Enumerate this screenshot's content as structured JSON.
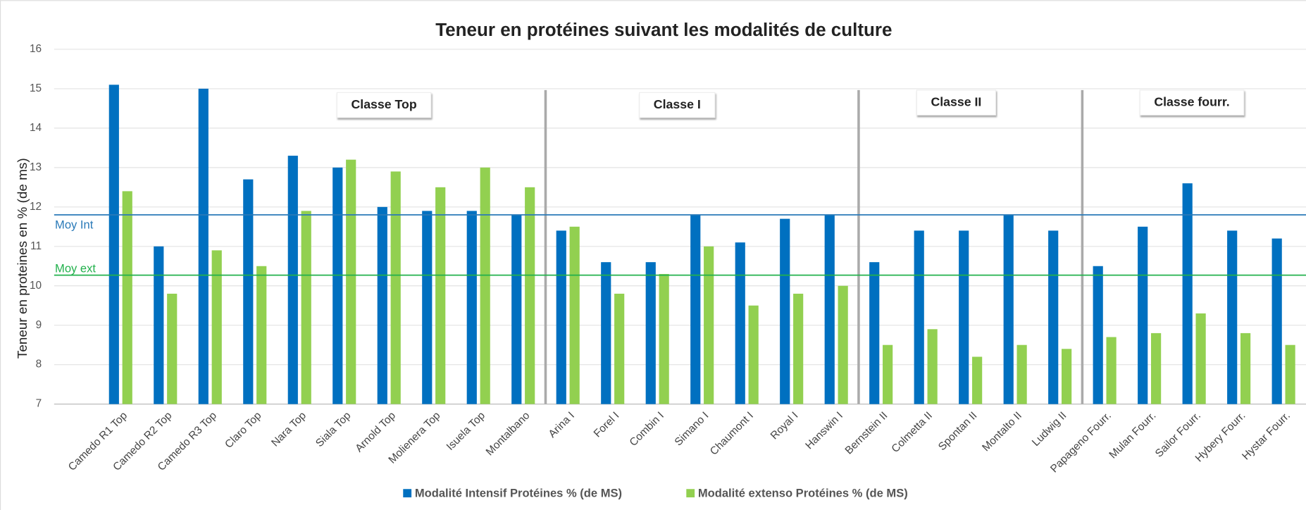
{
  "chart_data": {
    "type": "bar",
    "title": "Teneur en protéines suivant les modalités de culture",
    "y_label": "Teneur en proteines en % (de ms)",
    "categories": [
      "Camedo R1 Top",
      "Camedo R2 Top",
      "Camedo R3 Top",
      "Claro Top",
      "Nara Top",
      "Siala Top",
      "Arnold Top",
      "Molienera Top",
      "Isuela Top",
      "Montalbano",
      "Arina I",
      "Forel I",
      "Combin I",
      "Simano I",
      "Chaumont I",
      "Royal I",
      "Hanswin I",
      "Bernstein II",
      "Colmetta II",
      "Spontan II",
      "Montalto II",
      "Ludwig II",
      "Papageno Fourr.",
      "Mulan Fourr.",
      "Sailor Fourr.",
      "Hybery Fourr.",
      "Hystar Fourr."
    ],
    "series": [
      {
        "name": "Modalité Intensif  Protéines % (de MS)",
        "color": "#0070c0",
        "values": [
          15.1,
          11.0,
          15.0,
          12.7,
          13.3,
          13.0,
          12.0,
          11.9,
          11.9,
          11.8,
          11.4,
          10.6,
          10.6,
          11.8,
          11.1,
          11.7,
          11.8,
          10.6,
          11.4,
          11.4,
          11.8,
          11.4,
          10.5,
          11.5,
          12.6,
          11.4,
          11.2
        ]
      },
      {
        "name": "Modalité extenso Protéines % (de MS)",
        "color": "#92d050",
        "values": [
          12.4,
          9.8,
          10.9,
          10.5,
          11.9,
          13.2,
          12.9,
          12.5,
          13.0,
          12.5,
          11.5,
          9.8,
          10.3,
          11.0,
          9.5,
          9.8,
          10.0,
          8.5,
          8.9,
          8.2,
          8.5,
          8.4,
          8.7,
          8.8,
          9.3,
          8.8,
          8.5
        ]
      }
    ],
    "ylim": [
      7,
      16
    ],
    "yticks": [
      7,
      8,
      9,
      10,
      11,
      12,
      13,
      14,
      15,
      16
    ],
    "grid": true,
    "legend": "bottom",
    "reference_lines": [
      {
        "label": "Moy Int",
        "value": 11.8,
        "color": "#2a7ab8"
      },
      {
        "label": "Moy ext",
        "value": 10.27,
        "color": "#22b14c"
      }
    ],
    "groups": [
      {
        "label": "Classe Top",
        "span": [
          0,
          9
        ]
      },
      {
        "label": "Classe I",
        "span": [
          10,
          16
        ]
      },
      {
        "label": "Classe II",
        "span": [
          17,
          21
        ]
      },
      {
        "label": "Classe fourr.",
        "span": [
          22,
          26
        ]
      }
    ]
  }
}
